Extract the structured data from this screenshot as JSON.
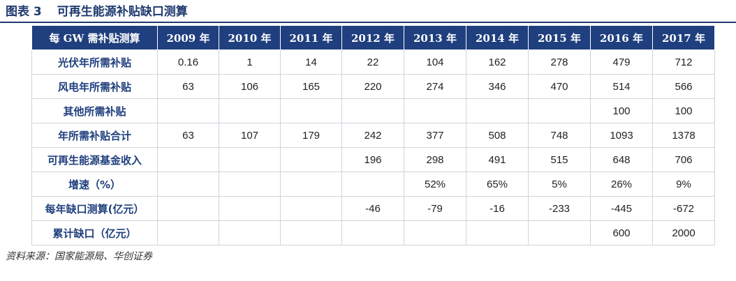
{
  "figure": {
    "label": "图表 3",
    "title": "可再生能源补贴缺口测算"
  },
  "table": {
    "header_label": "每 GW 需补贴测算",
    "columns": [
      "2009 年",
      "2010 年",
      "2011 年",
      "2012 年",
      "2013 年",
      "2014 年",
      "2015 年",
      "2016 年",
      "2017 年"
    ],
    "rows": [
      {
        "label": "光伏年所需补贴",
        "values": [
          "0.16",
          "1",
          "14",
          "22",
          "104",
          "162",
          "278",
          "479",
          "712"
        ]
      },
      {
        "label": "风电年所需补贴",
        "values": [
          "63",
          "106",
          "165",
          "220",
          "274",
          "346",
          "470",
          "514",
          "566"
        ]
      },
      {
        "label": "其他所需补贴",
        "values": [
          "",
          "",
          "",
          "",
          "",
          "",
          "",
          "100",
          "100"
        ]
      },
      {
        "label": "年所需补贴合计",
        "values": [
          "63",
          "107",
          "179",
          "242",
          "377",
          "508",
          "748",
          "1093",
          "1378"
        ]
      },
      {
        "label": "可再生能源基金收入",
        "values": [
          "",
          "",
          "",
          "196",
          "298",
          "491",
          "515",
          "648",
          "706"
        ]
      },
      {
        "label": "增速（%）",
        "values": [
          "",
          "",
          "",
          "",
          "52%",
          "65%",
          "5%",
          "26%",
          "9%"
        ]
      },
      {
        "label": "每年缺口测算(亿元）",
        "values": [
          "",
          "",
          "",
          "-46",
          "-79",
          "-16",
          "-233",
          "-445",
          "-672"
        ]
      },
      {
        "label": "累计缺口（亿元）",
        "values": [
          "",
          "",
          "",
          "",
          "",
          "",
          "",
          "600",
          "2000"
        ]
      }
    ]
  },
  "source": "资料来源：国家能源局、华创证券",
  "colors": {
    "header_bg": "#1f3f7e",
    "title_blue": "#1f3a6e",
    "row_label_blue": "#1f3f7e",
    "border": "#cfd4dc"
  }
}
